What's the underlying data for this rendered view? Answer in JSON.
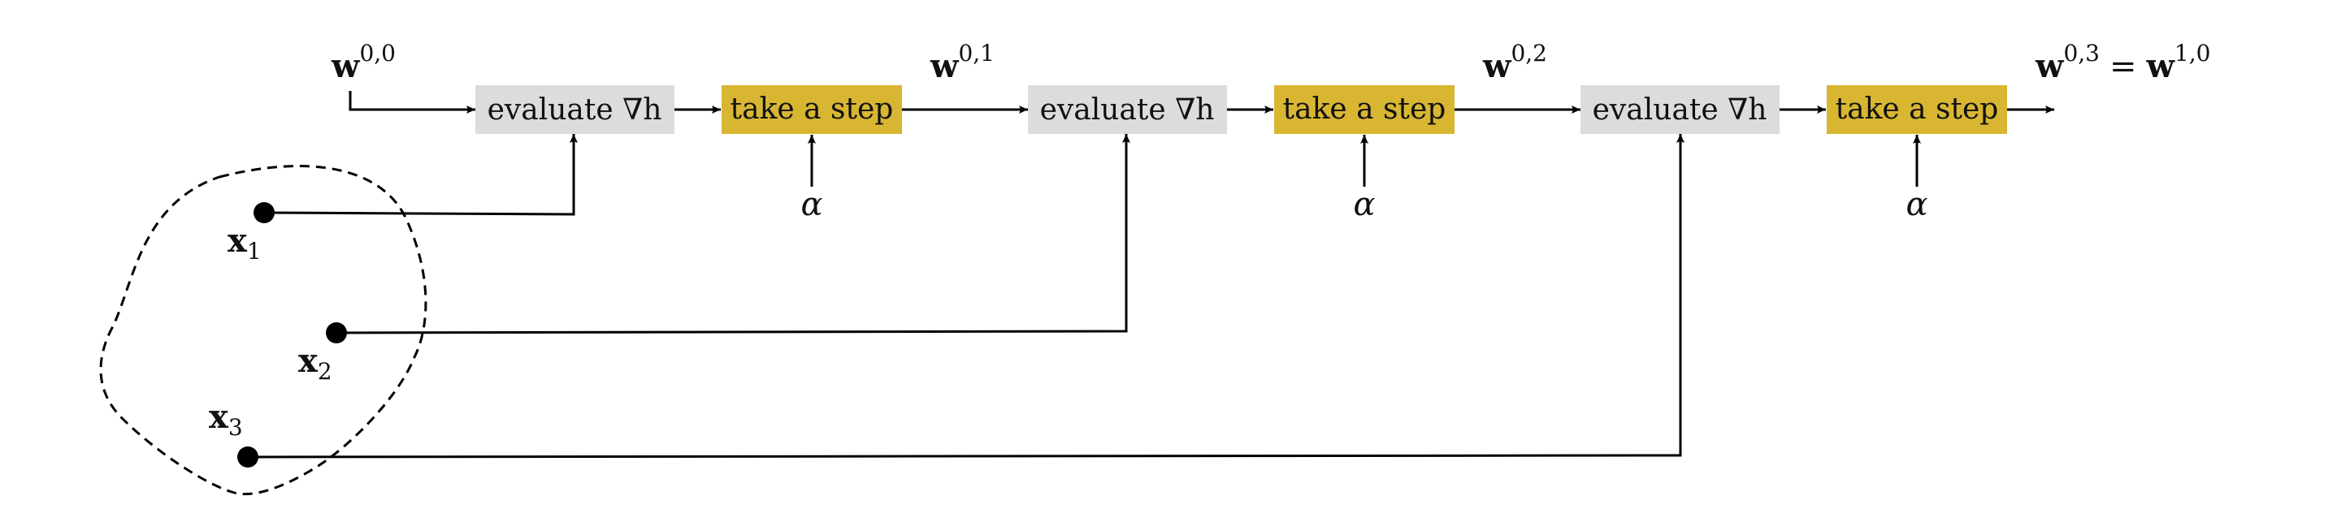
{
  "colors": {
    "evaluate_box": "#dcdcdc",
    "step_box": "#d8b632",
    "line": "#000000"
  },
  "weights": [
    {
      "base": "w",
      "sup": "0,0"
    },
    {
      "base": "w",
      "sup": "0,1"
    },
    {
      "base": "w",
      "sup": "0,2"
    },
    {
      "base": "w",
      "sup": "0,3",
      "equals": "=",
      "base2": "w",
      "sup2": "1,0"
    }
  ],
  "stages": [
    {
      "evaluate": "evaluate ∇h",
      "step": "take a step",
      "alpha": "α"
    },
    {
      "evaluate": "evaluate ∇h",
      "step": "take a step",
      "alpha": "α"
    },
    {
      "evaluate": "evaluate ∇h",
      "step": "take a step",
      "alpha": "α"
    }
  ],
  "points": [
    {
      "base": "x",
      "sub": "1"
    },
    {
      "base": "x",
      "sub": "2"
    },
    {
      "base": "x",
      "sub": "3"
    }
  ]
}
